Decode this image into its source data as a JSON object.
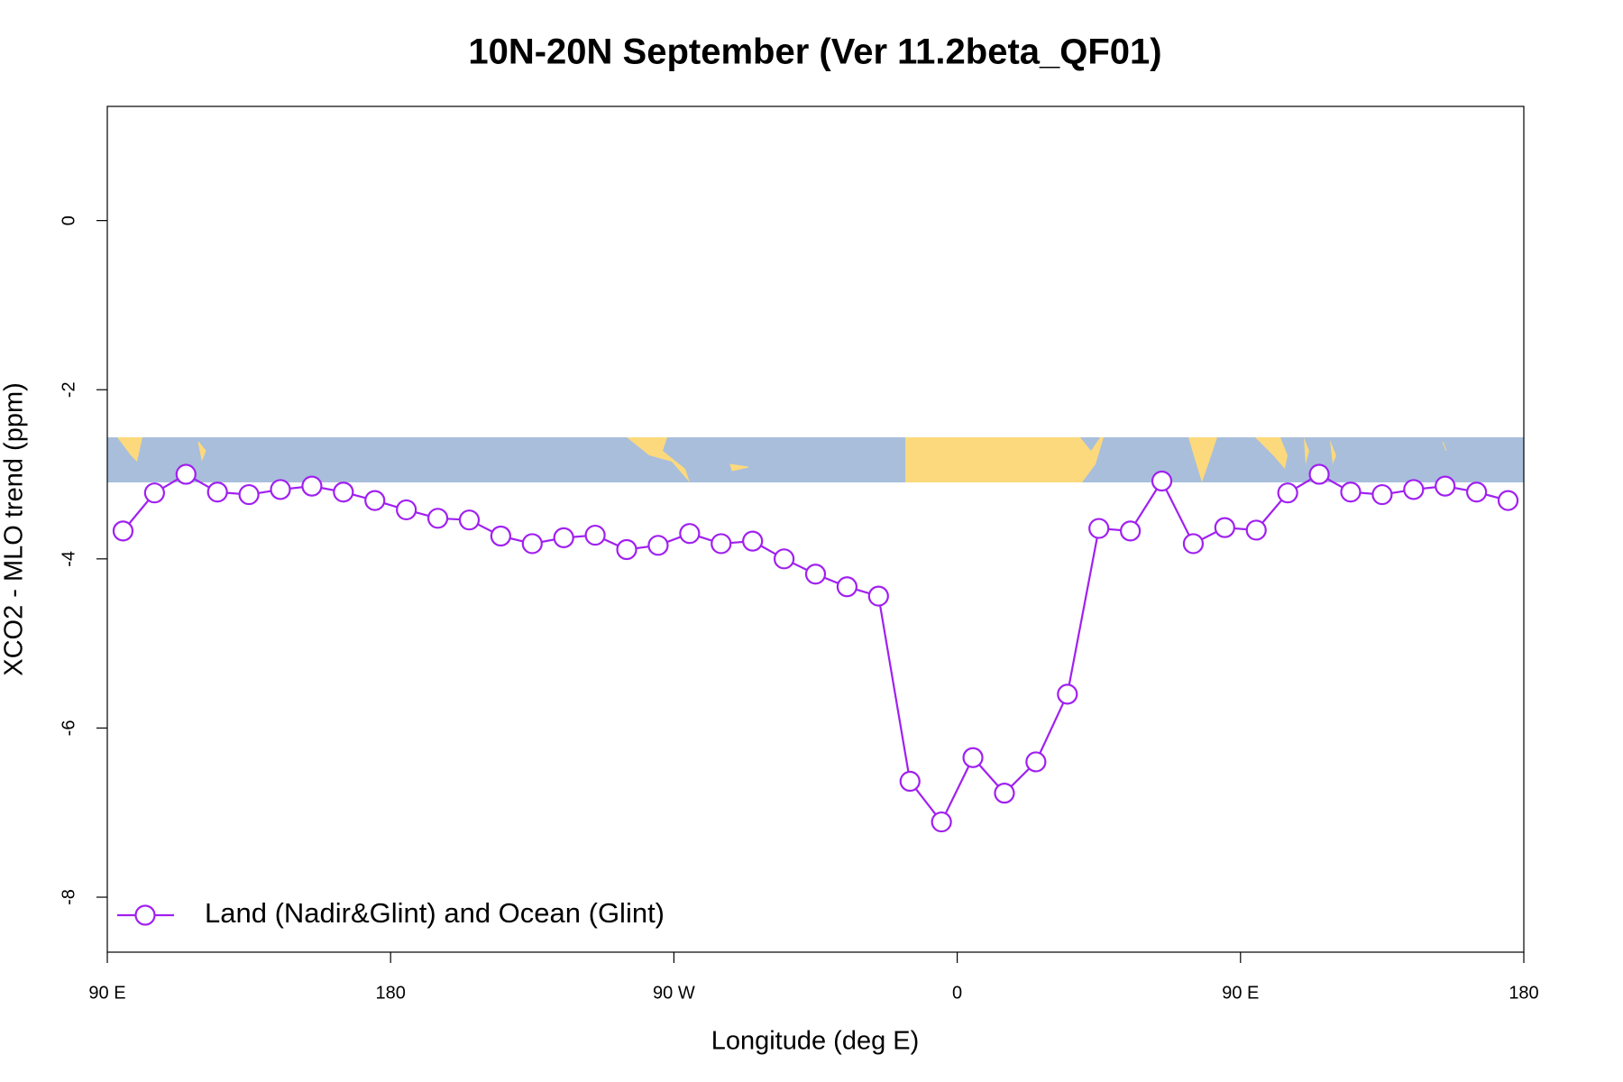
{
  "chart_data": {
    "type": "line",
    "title": "10N-20N September (Ver 11.2beta_QF01)",
    "x_label": "Longitude (deg E)",
    "y_label": "XCO2 - MLO trend (ppm)",
    "x": [
      95,
      105,
      115,
      125,
      135,
      145,
      155,
      165,
      175,
      185,
      195,
      205,
      215,
      225,
      235,
      245,
      255,
      265,
      275,
      285,
      295,
      305,
      315,
      325,
      335,
      345,
      355,
      365,
      375,
      385,
      395,
      405,
      415,
      425,
      435,
      445,
      455,
      465,
      475,
      485,
      495,
      505,
      515,
      525,
      535
    ],
    "series": [
      {
        "name": "Land (Nadir&Glint) and Ocean (Glint)",
        "color": "#a020f0",
        "values": [
          -3.67,
          -3.22,
          -3.0,
          -3.21,
          -3.24,
          -3.18,
          -3.14,
          -3.21,
          -3.31,
          -3.42,
          -3.52,
          -3.54,
          -3.73,
          -3.82,
          -3.75,
          -3.72,
          -3.89,
          -3.84,
          -3.7,
          -3.82,
          -3.79,
          -4.0,
          -4.18,
          -4.33,
          -4.44,
          -6.63,
          -7.11,
          -6.35,
          -6.77,
          -6.4,
          -5.6,
          -3.64,
          -3.67,
          -3.08,
          -3.82,
          -3.63,
          -3.66,
          -3.22,
          -3.0,
          -3.21,
          -3.24,
          -3.18,
          -3.14,
          -3.21,
          -3.31
        ]
      }
    ],
    "xlim": [
      90,
      540
    ],
    "xticks": [
      {
        "value": 90,
        "label": "90 E"
      },
      {
        "value": 180,
        "label": "180"
      },
      {
        "value": 270,
        "label": "90 W"
      },
      {
        "value": 360,
        "label": "0"
      },
      {
        "value": 450,
        "label": "90 E"
      },
      {
        "value": 540,
        "label": "180"
      }
    ],
    "ylim": [
      -8.65,
      1.35
    ],
    "yticks": [
      0,
      -2,
      -4,
      -6,
      -8
    ],
    "grid": false,
    "legend": "bottom-left"
  }
}
